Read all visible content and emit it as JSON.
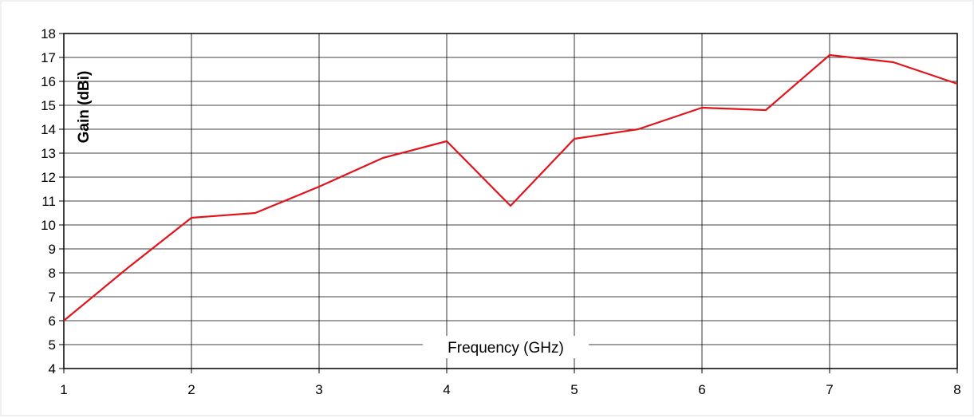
{
  "chart_data": {
    "type": "line",
    "title": "",
    "xlabel": "Frequency (GHz)",
    "ylabel": "Gain (dBi)",
    "xlim": [
      1,
      8
    ],
    "ylim": [
      4,
      18
    ],
    "x_ticks": [
      "1",
      "2",
      "3",
      "4",
      "5",
      "6",
      "7",
      "8"
    ],
    "y_ticks": [
      "4",
      "5",
      "6",
      "7",
      "8",
      "9",
      "10",
      "11",
      "12",
      "13",
      "14",
      "15",
      "16",
      "17",
      "18"
    ],
    "grid": true,
    "legend": "none",
    "series": [
      {
        "color": "#e3131b",
        "x": [
          1,
          1.5,
          2,
          2.5,
          3,
          3.5,
          4,
          4.5,
          5,
          5.5,
          6,
          6.5,
          7,
          7.5,
          8
        ],
        "y": [
          6.0,
          8.2,
          10.3,
          10.5,
          11.6,
          12.8,
          13.5,
          10.8,
          13.6,
          14.0,
          14.9,
          14.8,
          17.1,
          16.8,
          15.9
        ]
      }
    ]
  }
}
